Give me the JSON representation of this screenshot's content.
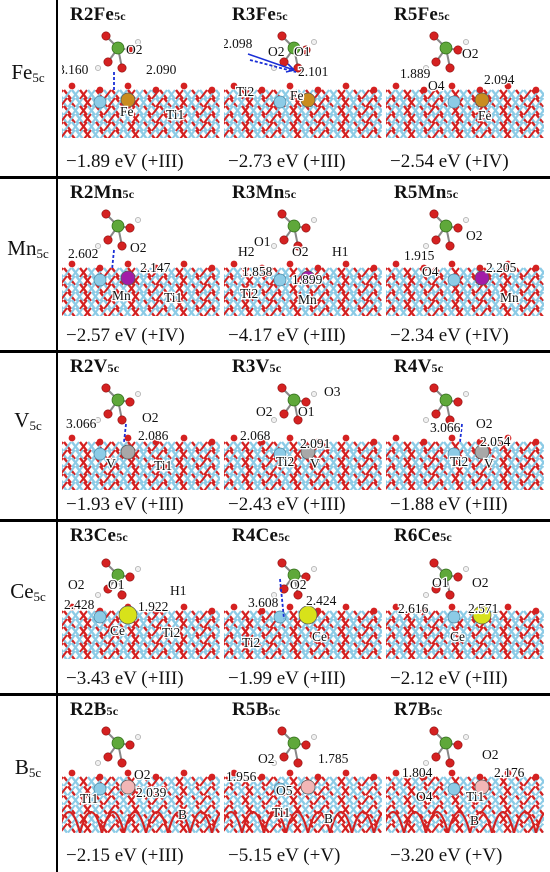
{
  "rows": [
    {
      "label_main": "Fe",
      "label_sub": "5c",
      "panels": [
        {
          "title": "R2Fe",
          "sub": "5c",
          "energy": "−1.89 eV (+III)",
          "labels": [
            "O2",
            "3.160",
            "2.090",
            "Fe",
            "Ti1"
          ]
        },
        {
          "title": "R3Fe",
          "sub": "5c",
          "energy": "−2.73 eV (+III)",
          "labels": [
            "2.098",
            "O2",
            "O1",
            "2.101",
            "Ti2",
            "Fe"
          ]
        },
        {
          "title": "R5Fe",
          "sub": "5c",
          "energy": "−2.54 eV (+IV)",
          "labels": [
            "O2",
            "1.889",
            "O4",
            "2.094",
            "Fe"
          ]
        }
      ]
    },
    {
      "label_main": "Mn",
      "label_sub": "5c",
      "panels": [
        {
          "title": "R2Mn",
          "sub": "5c",
          "energy": "−2.57 eV (+IV)",
          "labels": [
            "O2",
            "2.602",
            "2.147",
            "Mn",
            "Ti1"
          ]
        },
        {
          "title": "R3Mn",
          "sub": "5c",
          "energy": "−4.17 eV (+III)",
          "labels": [
            "H2",
            "O1",
            "O2",
            "H1",
            "1.858",
            "1.899",
            "Ti2",
            "Mn"
          ]
        },
        {
          "title": "R5Mn",
          "sub": "5c",
          "energy": "−2.34 eV (+IV)",
          "labels": [
            "O2",
            "1.915",
            "O4",
            "2.205",
            "Mn"
          ]
        }
      ]
    },
    {
      "label_main": "V",
      "label_sub": "5c",
      "panels": [
        {
          "title": "R2V",
          "sub": "5c",
          "energy": "−1.93 eV (+III)",
          "labels": [
            "3.066",
            "O2",
            "2.086",
            "V",
            "Ti1"
          ]
        },
        {
          "title": "R3V",
          "sub": "5c",
          "energy": "−2.43 eV (+III)",
          "labels": [
            "O3",
            "O2",
            "O1",
            "2.068",
            "2.091",
            "Ti2",
            "V"
          ]
        },
        {
          "title": "R4V",
          "sub": "5c",
          "energy": "−1.88 eV (+III)",
          "labels": [
            "3.066",
            "O2",
            "2.054",
            "Ti2",
            "V"
          ]
        }
      ]
    },
    {
      "label_main": "Ce",
      "label_sub": "5c",
      "panels": [
        {
          "title": "R3Ce",
          "sub": "5c",
          "energy": "−3.43 eV (+III)",
          "labels": [
            "O2",
            "O1",
            "H1",
            "2.428",
            "1.922",
            "Ce",
            "Ti2"
          ]
        },
        {
          "title": "R4Ce",
          "sub": "5c",
          "energy": "−1.99 eV (+III)",
          "labels": [
            "O2",
            "3.608",
            "2.424",
            "Ti2",
            "Ce"
          ]
        },
        {
          "title": "R6Ce",
          "sub": "5c",
          "energy": "−2.12 eV (+III)",
          "labels": [
            "O1",
            "O2",
            "2.616",
            "2.571",
            "Ce"
          ]
        }
      ]
    },
    {
      "label_main": "B",
      "label_sub": "5c",
      "panels": [
        {
          "title": "R2B",
          "sub": "5c",
          "energy": "−2.15 eV (+III)",
          "labels": [
            "O2",
            "Ti1",
            "2.039",
            "B"
          ]
        },
        {
          "title": "R5B",
          "sub": "5c",
          "energy": "−5.15 eV (+V)",
          "labels": [
            "O2",
            "1.785",
            "1.956",
            "O5",
            "Ti1",
            "B"
          ]
        },
        {
          "title": "R7B",
          "sub": "5c",
          "energy": "−3.20 eV (+V)",
          "labels": [
            "O2",
            "1.804",
            "2.176",
            "O4",
            "Ti1",
            "B"
          ]
        }
      ]
    }
  ],
  "colors": {
    "oxygen": "#d42121",
    "titanium": "#8ccbe6",
    "phosphorus": "#5fa83a",
    "hydrogen": "#f0f0f0",
    "fe": "#c98c1e",
    "mn": "#a21ca8",
    "v": "#a8a8a8",
    "ce": "#d8e21a",
    "b": "#f2b6b6",
    "bond_marker": "#1a2fd6"
  }
}
